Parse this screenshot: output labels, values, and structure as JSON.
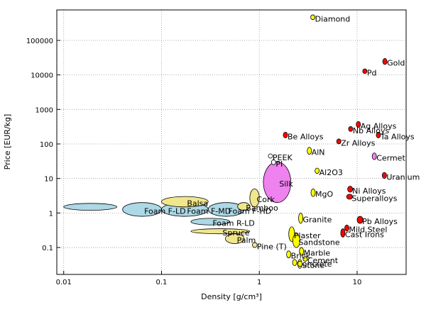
{
  "chart_data": {
    "type": "ellipse-range",
    "x_label": "Density [g/cm³]",
    "y_label": "Price [EUR/kg]",
    "log_x": true,
    "log_y": true,
    "grid": true,
    "xlim": [
      0.0085,
      31.7
    ],
    "ylim": [
      0.0166,
      764000
    ],
    "xticks": [
      0.01,
      0.1,
      1,
      10
    ],
    "yticks": [
      0.1,
      1,
      10,
      100,
      1000,
      10000,
      100000
    ],
    "series": [
      {
        "color": "#add8e6",
        "labels": [
          null,
          "Foam F-LD",
          "Foam F-MD",
          "Foam R-LD",
          "Foam F-HD"
        ],
        "xmin": [
          0.01,
          0.04,
          0.1,
          0.2,
          0.3
        ],
        "xmax": [
          0.035,
          0.1,
          0.3,
          0.5,
          0.7
        ],
        "ymin": [
          1.2,
          0.8,
          0.8,
          0.45,
          0.8
        ],
        "ymax": [
          1.9,
          2.0,
          2.0,
          0.7,
          2.0
        ]
      },
      {
        "color": "#f0e68c",
        "labels": [
          "Balsa",
          "Cork",
          "Spruce",
          "Palm",
          "Pine (T)",
          "Bamboo"
        ],
        "xmin": [
          0.1,
          0.8,
          0.2,
          0.45,
          0.85,
          0.6
        ],
        "xmax": [
          0.3,
          1.0,
          0.8,
          0.7,
          0.95,
          0.8
        ],
        "ymin": [
          1.5,
          1.5,
          0.25,
          0.13,
          0.1,
          1.2
        ],
        "ymax": [
          3,
          5,
          0.35,
          0.25,
          0.14,
          2
        ]
      },
      {
        "color": "#ee82ee",
        "labels": [
          "Silk",
          "Cermet"
        ],
        "xmin": [
          1.1,
          14.5
        ],
        "xmax": [
          2.1,
          15.5
        ],
        "ymin": [
          2,
          35
        ],
        "ymax": [
          30,
          55
        ]
      },
      {
        "color": "#ffffff",
        "labels": [
          "PEEK",
          "PI"
        ],
        "xmin": [
          1.28,
          1.38
        ],
        "xmax": [
          1.32,
          1.42
        ],
        "ymin": [
          40,
          25
        ],
        "ymax": [
          50,
          35
        ]
      },
      {
        "color": "#ffff00",
        "labels": [
          "Diamond",
          "AlN",
          "Al2O3",
          "MgO",
          "Granite",
          "Plaster",
          "Sandstone",
          "Marble",
          "Brick",
          "Cement",
          "Concrete",
          "Stone"
        ],
        "xmin": [
          3.5,
          3.2,
          3.8,
          3.5,
          2.6,
          2.0,
          2.2,
          2.6,
          1.9,
          2.8,
          2.2,
          2.5
        ],
        "xmax": [
          3.55,
          3.3,
          4.0,
          3.6,
          2.7,
          2.3,
          2.6,
          2.8,
          2.1,
          3.1,
          2.4,
          2.7
        ],
        "ymin": [
          400000,
          50,
          14,
          3,
          0.5,
          0.15,
          0.1,
          0.06,
          0.05,
          0.04,
          0.03,
          0.025
        ],
        "ymax": [
          550000,
          80,
          20,
          5,
          1.0,
          0.4,
          0.25,
          0.1,
          0.08,
          0.055,
          0.045,
          0.045
        ]
      },
      {
        "color": "#ff0000",
        "labels": [
          "Gold",
          "Pd",
          "Ag Alloys",
          "Nb Alloys",
          "Ta Alloys",
          "Be Alloys",
          "Zr Alloys",
          "Uranium",
          "Ni Alloys",
          "Superalloys",
          "Pb Alloys",
          "Mild Steel",
          "Cast Irons"
        ],
        "xmin": [
          18.5,
          11.8,
          10,
          8.2,
          16,
          1.82,
          6.4,
          18.5,
          8,
          7.8,
          10,
          7.8,
          7.0
        ],
        "xmax": [
          20,
          12.2,
          10.6,
          9,
          17,
          1.88,
          6.6,
          19.5,
          9,
          9,
          11.5,
          7.9,
          7.3
        ],
        "ymin": [
          20000,
          11000,
          300,
          230,
          150,
          150,
          100,
          10,
          4,
          2.5,
          0.5,
          0.3,
          0.2
        ],
        "ymax": [
          30000,
          15000,
          450,
          320,
          220,
          220,
          140,
          15,
          6,
          3.5,
          0.8,
          0.45,
          0.35
        ]
      }
    ]
  }
}
